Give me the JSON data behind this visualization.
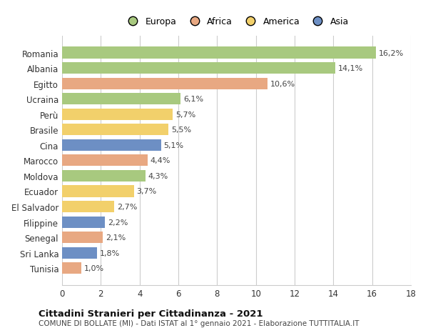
{
  "countries": [
    "Romania",
    "Albania",
    "Egitto",
    "Ucraina",
    "Perù",
    "Brasile",
    "Cina",
    "Marocco",
    "Moldova",
    "Ecuador",
    "El Salvador",
    "Filippine",
    "Senegal",
    "Sri Lanka",
    "Tunisia"
  ],
  "values": [
    16.2,
    14.1,
    10.6,
    6.1,
    5.7,
    5.5,
    5.1,
    4.4,
    4.3,
    3.7,
    2.7,
    2.2,
    2.1,
    1.8,
    1.0
  ],
  "labels": [
    "16,2%",
    "14,1%",
    "10,6%",
    "6,1%",
    "5,7%",
    "5,5%",
    "5,1%",
    "4,4%",
    "4,3%",
    "3,7%",
    "2,7%",
    "2,2%",
    "2,1%",
    "1,8%",
    "1,0%"
  ],
  "continents": [
    "Europa",
    "Europa",
    "Africa",
    "Europa",
    "America",
    "America",
    "Asia",
    "Africa",
    "Europa",
    "America",
    "America",
    "Asia",
    "Africa",
    "Asia",
    "Africa"
  ],
  "colors": {
    "Europa": "#a8c97f",
    "Africa": "#e8a882",
    "America": "#f2d06b",
    "Asia": "#6d8fc4"
  },
  "xlim": [
    0,
    18
  ],
  "xticks": [
    0,
    2,
    4,
    6,
    8,
    10,
    12,
    14,
    16,
    18
  ],
  "title": "Cittadini Stranieri per Cittadinanza - 2021",
  "subtitle": "COMUNE DI BOLLATE (MI) - Dati ISTAT al 1° gennaio 2021 - Elaborazione TUTTITALIA.IT",
  "background_color": "#ffffff",
  "grid_color": "#cccccc",
  "bar_height": 0.75,
  "figsize": [
    6.0,
    4.6
  ],
  "dpi": 100,
  "legend_order": [
    "Europa",
    "Africa",
    "America",
    "Asia"
  ]
}
